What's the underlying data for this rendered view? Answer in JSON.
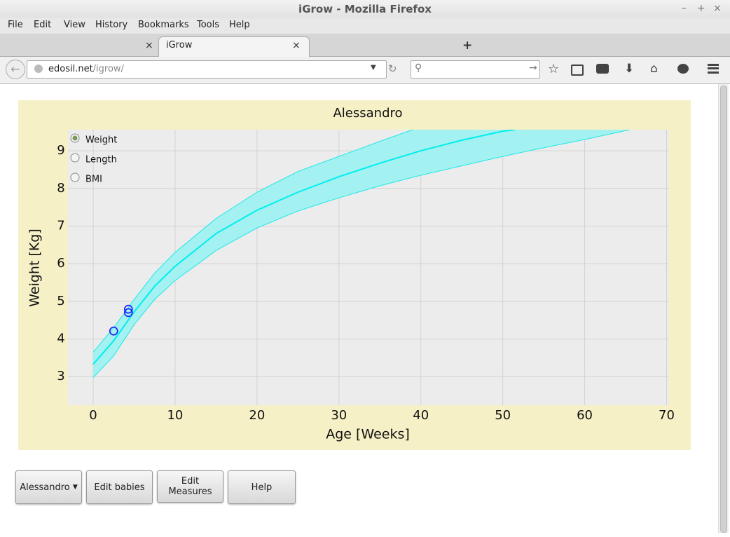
{
  "window": {
    "title": "iGrow - Mozilla Firefox"
  },
  "menu": [
    "File",
    "Edit",
    "View",
    "History",
    "Bookmarks",
    "Tools",
    "Help"
  ],
  "tab": "iGrow",
  "url": {
    "host": "edosil.net",
    "path": "/igrow/"
  },
  "chart_data": {
    "type": "line",
    "title": "Alessandro",
    "xlabel": "Age [Weeks]",
    "ylabel": "Weight [Kg]",
    "xlim": [
      -3.08,
      70.3
    ],
    "ylim": [
      2.24,
      9.56
    ],
    "xticks": [
      0,
      10,
      20,
      30,
      40,
      50,
      60,
      70
    ],
    "yticks": [
      3,
      4,
      5,
      6,
      7,
      8,
      9
    ],
    "grid": true,
    "series": [
      {
        "color": "#22e8e8",
        "fill": "#a3f1f1",
        "x": [
          0,
          2.5,
          5,
          7.5,
          10,
          15,
          20,
          25,
          30,
          35,
          39
        ],
        "values": [
          3.65,
          4.3,
          5.05,
          5.75,
          6.3,
          7.2,
          7.9,
          8.45,
          8.85,
          9.25,
          9.56
        ]
      },
      {
        "color": "#22e8e8",
        "x": [
          0,
          2.5,
          5,
          7.5,
          10,
          15,
          20,
          25,
          30,
          35,
          40,
          45,
          50,
          55,
          60,
          65.5
        ],
        "values": [
          2.97,
          3.55,
          4.38,
          5.05,
          5.55,
          6.35,
          6.95,
          7.4,
          7.75,
          8.07,
          8.35,
          8.6,
          8.85,
          9.08,
          9.3,
          9.56
        ]
      },
      {
        "color": "#00eeee",
        "x": [
          0,
          2.5,
          5,
          7.5,
          10,
          15,
          20,
          25,
          30,
          35,
          40,
          45,
          50,
          51.5
        ],
        "values": [
          3.33,
          3.95,
          4.72,
          5.4,
          5.93,
          6.8,
          7.42,
          7.9,
          8.31,
          8.67,
          9.0,
          9.28,
          9.52,
          9.56
        ]
      },
      {
        "type": "scatter",
        "color": "#1a1aff",
        "x": [
          2.5,
          4.3,
          4.3
        ],
        "values": [
          4.21,
          4.79,
          4.7
        ]
      }
    ],
    "options": [
      {
        "label": "Weight",
        "checked": true
      },
      {
        "label": "Length",
        "checked": false
      },
      {
        "label": "BMI",
        "checked": false
      }
    ]
  },
  "buttons": {
    "baby": "Alessandro",
    "edit_babies": "Edit babies",
    "edit_measures": "Edit Measures",
    "help": "Help"
  }
}
